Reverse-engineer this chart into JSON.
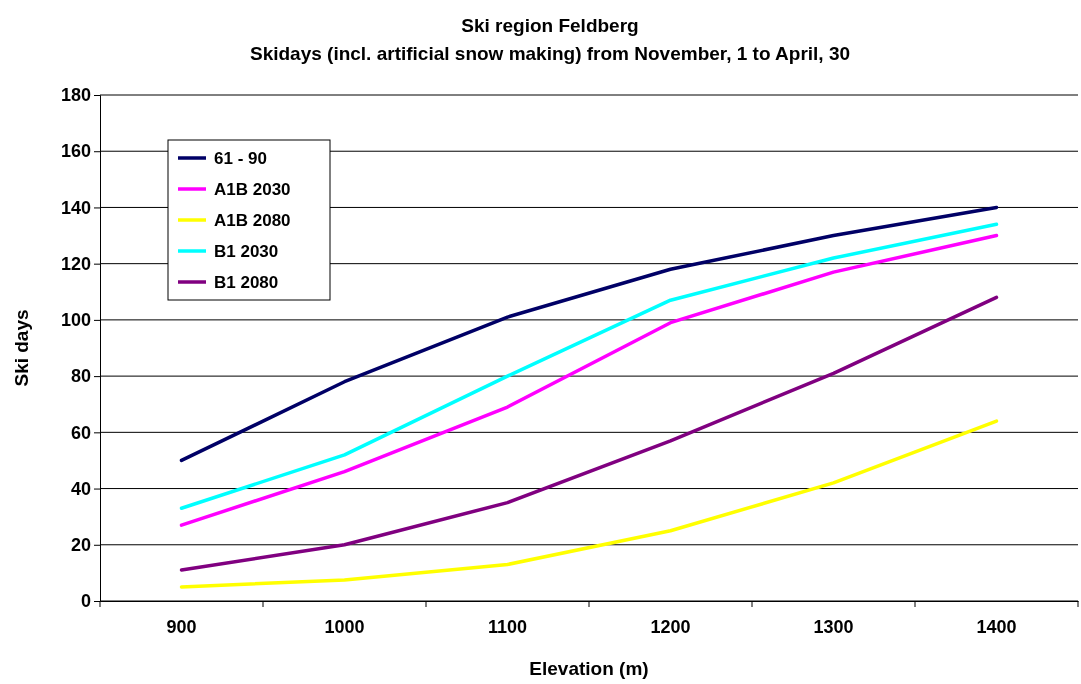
{
  "chart_data": {
    "type": "line",
    "title": "Ski region Feldberg",
    "subtitle": "Skidays (incl. artificial snow making) from November, 1  to April, 30",
    "xlabel": "Elevation  (m)",
    "ylabel": "Ski days",
    "categories": [
      "900",
      "1000",
      "1100",
      "1200",
      "1300",
      "1400"
    ],
    "ylim": [
      0,
      180
    ],
    "yticks": [
      0,
      20,
      40,
      60,
      80,
      100,
      120,
      140,
      160,
      180
    ],
    "grid": "y",
    "legend": "top left",
    "marker": "none",
    "line_style": "solid",
    "series": [
      {
        "name": "61 - 90",
        "color": "#000066",
        "values": [
          50,
          78,
          101,
          118,
          130,
          140
        ]
      },
      {
        "name": "A1B 2030",
        "color": "#ff00ff",
        "values": [
          27,
          46,
          69,
          99,
          117,
          130
        ]
      },
      {
        "name": "A1B 2080",
        "color": "#ffff00",
        "values": [
          5,
          7.5,
          13,
          25,
          42,
          64
        ]
      },
      {
        "name": "B1 2030",
        "color": "#00ffff",
        "values": [
          33,
          52,
          80,
          107,
          122,
          134
        ]
      },
      {
        "name": "B1 2080",
        "color": "#800080",
        "values": [
          11,
          20,
          35,
          57,
          81,
          108
        ]
      }
    ]
  }
}
